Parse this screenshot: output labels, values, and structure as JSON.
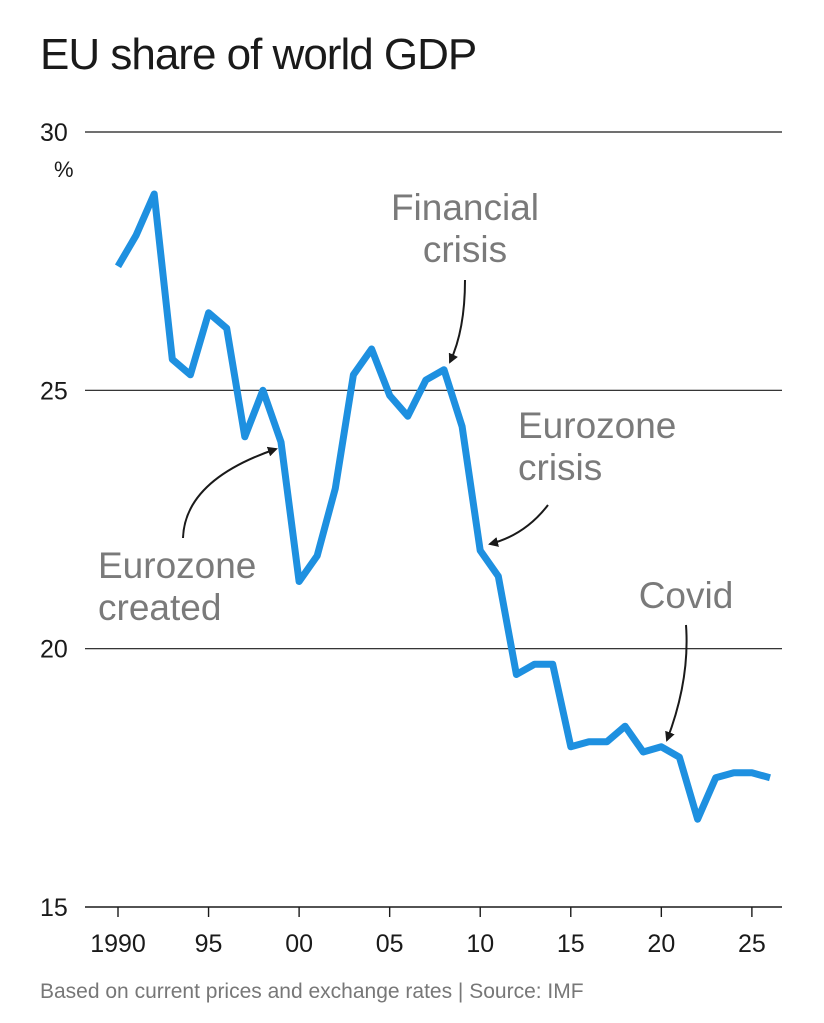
{
  "title": "EU share of world GDP",
  "source": "Based on current prices and exchange rates | Source: IMF",
  "chart_data": {
    "type": "line",
    "title": "EU share of world GDP",
    "ylabel": "",
    "y_unit": "%",
    "ylim": [
      15,
      30
    ],
    "y_ticks": [
      30,
      25,
      20,
      15
    ],
    "xlim": [
      1990,
      2026
    ],
    "x_ticks": [
      {
        "value": 1990,
        "label": "1990"
      },
      {
        "value": 1995,
        "label": "95"
      },
      {
        "value": 2000,
        "label": "00"
      },
      {
        "value": 2005,
        "label": "05"
      },
      {
        "value": 2010,
        "label": "10"
      },
      {
        "value": 2015,
        "label": "15"
      },
      {
        "value": 2020,
        "label": "20"
      },
      {
        "value": 2025,
        "label": "25"
      }
    ],
    "grid": "horizontal",
    "line_color": "#1e90e0",
    "series": [
      {
        "x": [
          1990,
          1991,
          1992,
          1993,
          1994,
          1995,
          1996,
          1997,
          1998,
          1999,
          2000,
          2001,
          2002,
          2003,
          2004,
          2005,
          2006,
          2007,
          2008,
          2009,
          2010,
          2011,
          2012,
          2013,
          2014,
          2015,
          2016,
          2017,
          2018,
          2019,
          2020,
          2021,
          2022,
          2023,
          2024,
          2025,
          2026
        ],
        "values": [
          27.4,
          28.0,
          28.8,
          25.6,
          25.3,
          26.5,
          26.2,
          24.1,
          25.0,
          24.0,
          21.3,
          21.8,
          23.1,
          25.3,
          25.8,
          24.9,
          24.5,
          25.2,
          25.4,
          24.3,
          21.9,
          21.4,
          19.5,
          19.7,
          19.7,
          18.1,
          18.2,
          18.2,
          18.5,
          18.0,
          18.1,
          17.9,
          16.7,
          17.5,
          17.6,
          17.6,
          17.5
        ]
      }
    ],
    "annotations": [
      {
        "text": [
          "Financial",
          "crisis"
        ],
        "x": 2008,
        "y": 25.4
      },
      {
        "text": [
          "Eurozone",
          "crisis"
        ],
        "x": 2010,
        "y": 21.9
      },
      {
        "text": [
          "Eurozone",
          "created"
        ],
        "x": 1999,
        "y": 24.0
      },
      {
        "text": [
          "Covid"
        ],
        "x": 2020,
        "y": 18.1
      }
    ]
  }
}
